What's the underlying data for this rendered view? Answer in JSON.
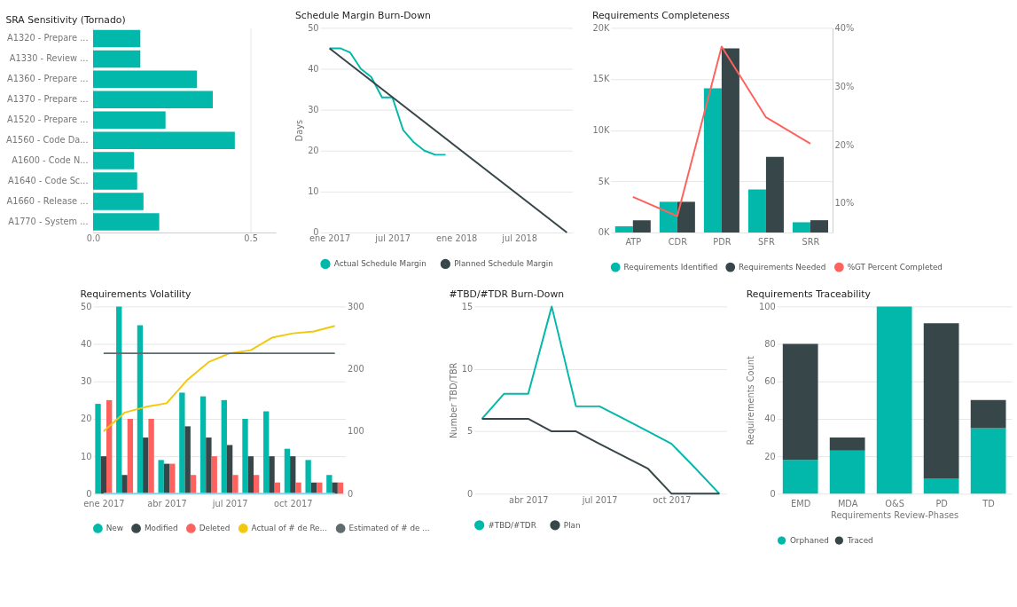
{
  "chart_data": [
    {
      "type": "bar",
      "orientation": "horizontal",
      "title": "SRA Sensitivity (Tornado)",
      "categories": [
        "A1320 - Prepare ...",
        "A1330 - Review ...",
        "A1360 - Prepare ...",
        "A1370 - Prepare ...",
        "A1520 - Prepare ...",
        "A1560 - Code Da...",
        "A1600 - Code N...",
        "A1640 - Code Sc...",
        "A1660 - Release ...",
        "A1770 - System ..."
      ],
      "values": [
        0.15,
        0.15,
        0.33,
        0.38,
        0.23,
        0.45,
        0.13,
        0.14,
        0.16,
        0.21
      ],
      "color": "#01b8aa",
      "xlim": [
        0,
        0.58
      ],
      "xticks": [
        {
          "value": 0,
          "label": "0.0"
        },
        {
          "value": 0.5,
          "label": "0.5"
        }
      ],
      "grid": "x",
      "legend": false
    },
    {
      "type": "line",
      "title": "Schedule Margin Burn-Down",
      "ylabel": "Days",
      "series": [
        {
          "name": "Actual Schedule Margin",
          "color": "#01b8aa",
          "x": [
            "2017-01-01",
            "2017-02-01",
            "2017-03-01",
            "2017-04-01",
            "2017-05-01",
            "2017-06-01",
            "2017-07-01",
            "2017-08-01",
            "2017-09-01",
            "2017-10-01",
            "2017-11-01",
            "2017-12-01"
          ],
          "values": [
            45,
            45,
            44,
            40,
            38,
            33,
            33,
            25,
            22,
            20,
            19,
            19
          ]
        },
        {
          "name": "Planned Schedule Margin",
          "color": "#374649",
          "x": [
            "2017-01-01",
            "2018-11-15"
          ],
          "values": [
            45,
            0
          ]
        }
      ],
      "xlim": [
        "2016-12-05",
        "2018-12-01"
      ],
      "xticks": [
        {
          "value": "2017-01-01",
          "label": "ene 2017"
        },
        {
          "value": "2017-07-01",
          "label": "jul 2017"
        },
        {
          "value": "2018-01-01",
          "label": "ene 2018"
        },
        {
          "value": "2018-07-01",
          "label": "jul 2018"
        }
      ],
      "ylim": [
        0,
        50
      ],
      "yticks": [
        0,
        10,
        20,
        30,
        40,
        50
      ],
      "grid": "y",
      "legend": "bottom"
    },
    {
      "type": "bar",
      "title": "Requirements Completeness",
      "categories": [
        "ATP",
        "CDR",
        "PDR",
        "SFR",
        "SRR"
      ],
      "series": [
        {
          "name": "Requirements Identified",
          "color": "#01b8aa",
          "values": [
            600,
            3000,
            14100,
            4200,
            1000
          ]
        },
        {
          "name": "Requirements Needed",
          "color": "#374649",
          "values": [
            1200,
            3000,
            18000,
            7400,
            1200
          ]
        },
        {
          "name": "%GT Percent Completed",
          "type": "line",
          "axis": "y2",
          "color": "#fd625e",
          "values": [
            11.1,
            7.8,
            36.8,
            24.7,
            20.2
          ]
        }
      ],
      "ylim": [
        0,
        20000
      ],
      "yticks": [
        {
          "value": 0,
          "label": "0K"
        },
        {
          "value": 5000,
          "label": "5K"
        },
        {
          "value": 10000,
          "label": "10K"
        },
        {
          "value": 15000,
          "label": "15K"
        },
        {
          "value": 20000,
          "label": "20K"
        }
      ],
      "y2lim": [
        5,
        40
      ],
      "y2ticks": [
        {
          "value": 10,
          "label": "10%"
        },
        {
          "value": 20,
          "label": "20%"
        },
        {
          "value": 30,
          "label": "30%"
        },
        {
          "value": 40,
          "label": "40%"
        }
      ],
      "grid": "y",
      "legend": "bottom"
    },
    {
      "type": "bar",
      "title": "Requirements Volatility",
      "categories": [
        "ene 2017",
        null,
        null,
        "abr 2017",
        null,
        null,
        "jul 2017",
        null,
        null,
        "oct 2017",
        null,
        null
      ],
      "series": [
        {
          "name": "New",
          "color": "#01b8aa",
          "values": [
            24,
            50,
            45,
            9,
            27,
            26,
            25,
            20,
            22,
            12,
            9,
            5
          ]
        },
        {
          "name": "Modified",
          "color": "#374649",
          "values": [
            10,
            5,
            15,
            8,
            18,
            15,
            13,
            10,
            10,
            10,
            3,
            3
          ]
        },
        {
          "name": "Deleted",
          "color": "#fd625e",
          "values": [
            25,
            20,
            20,
            8,
            5,
            10,
            5,
            5,
            3,
            3,
            3,
            3
          ]
        },
        {
          "name": "Actual of # de Re...",
          "type": "line",
          "axis": "y2",
          "color": "#f2c80f",
          "values": [
            100,
            130,
            139,
            145,
            183,
            211,
            225,
            230,
            250,
            257,
            260,
            269
          ]
        },
        {
          "name": "Estimated of # de ...",
          "type": "line",
          "axis": "y2",
          "color": "#5f6b6d",
          "values": [
            225,
            225,
            225,
            225,
            225,
            225,
            225,
            225,
            225,
            225,
            225,
            225
          ]
        },
        {
          "type": "line",
          "axis": "y2",
          "color": "#8ad4eb",
          "values": [
            0,
            0,
            0,
            0,
            0,
            0,
            0,
            0,
            0,
            0,
            0,
            0
          ]
        }
      ],
      "ylim": [
        0,
        50
      ],
      "yticks": [
        0,
        10,
        20,
        30,
        40,
        50
      ],
      "y2lim": [
        0,
        300
      ],
      "y2ticks": [
        0,
        100,
        200,
        300
      ],
      "grid": "y",
      "legend": "bottom"
    },
    {
      "type": "line",
      "title": "#TBD/#TDR Burn-Down",
      "ylabel": "Number TBD/TBR",
      "x": [
        "2017-02-01",
        "2017-03-01",
        "2017-04-01",
        "2017-05-01",
        "2017-06-01",
        "2017-07-01",
        "2017-08-01",
        "2017-09-01",
        "2017-10-01",
        "2017-11-01",
        "2017-12-01"
      ],
      "series": [
        {
          "name": "#TBD/#TDR",
          "color": "#01b8aa",
          "values": [
            6,
            8,
            8,
            15,
            7,
            7,
            6,
            5,
            4,
            2,
            0
          ]
        },
        {
          "name": "Plan",
          "color": "#374649",
          "values": [
            6,
            6,
            6,
            5,
            5,
            4,
            3,
            2,
            0,
            0,
            0
          ]
        }
      ],
      "xlim": [
        "2017-01-22",
        "2017-12-10"
      ],
      "xticks": [
        {
          "value": "2017-04-01",
          "label": "abr 2017"
        },
        {
          "value": "2017-07-01",
          "label": "jul 2017"
        },
        {
          "value": "2017-10-01",
          "label": "oct 2017"
        }
      ],
      "ylim": [
        0,
        15
      ],
      "yticks": [
        0,
        5,
        10,
        15
      ],
      "grid": "y",
      "legend": "bottom"
    },
    {
      "type": "bar",
      "stacked": true,
      "title": "Requirements Traceability",
      "xlabel": "Requirements Review-Phases",
      "ylabel": "Requirements Count",
      "categories": [
        "EMD",
        "MDA",
        "O&S",
        "PD",
        "TD"
      ],
      "series": [
        {
          "name": "Orphaned",
          "color": "#01b8aa",
          "values": [
            18,
            23,
            100,
            8,
            35
          ]
        },
        {
          "name": "Traced",
          "color": "#374649",
          "values": [
            62,
            7,
            0,
            83,
            15
          ]
        }
      ],
      "ylim": [
        0,
        100
      ],
      "yticks": [
        0,
        20,
        40,
        60,
        80,
        100
      ],
      "grid": "y",
      "legend": "bottom"
    }
  ]
}
